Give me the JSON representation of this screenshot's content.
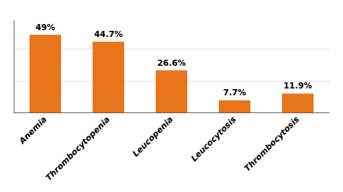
{
  "chart_data": {
    "type": "bar",
    "categories": [
      "Anemia",
      "Thrombocytopenia",
      "Leucopenia",
      "Leucocytosis",
      "Thrombocytosis"
    ],
    "values": [
      49.0,
      44.7,
      26.6,
      7.7,
      11.9
    ],
    "value_labels": [
      "49%",
      "44.7%",
      "26.6%",
      "7.7%",
      "11.9%"
    ],
    "data_labels": true,
    "color": "#E8751A",
    "ylim": [
      0,
      58
    ],
    "yticks": [
      0,
      20,
      40
    ],
    "grid": true,
    "tick_labels": "x"
  }
}
